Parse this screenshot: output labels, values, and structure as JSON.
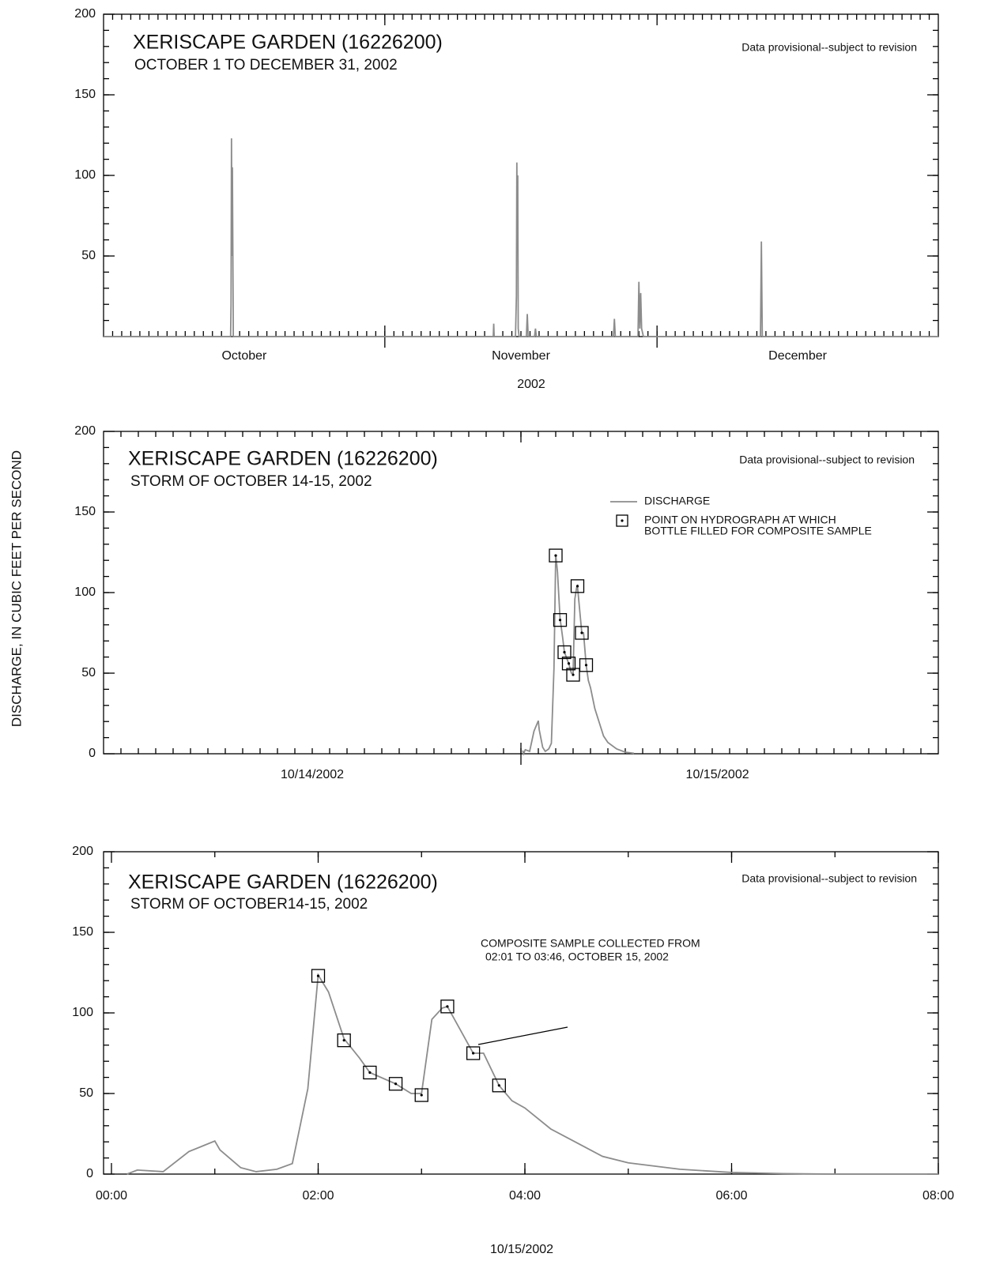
{
  "ylabel": "DISCHARGE, IN CUBIC FEET PER SECOND",
  "chart_data": [
    {
      "type": "line",
      "title": "XERISCAPE GARDEN (16226200)",
      "subtitle": "OCTOBER 1 TO DECEMBER 31, 2002",
      "note": "Data provisional--subject to revision",
      "xlabel": "2002",
      "xlim": [
        0,
        92
      ],
      "ylim": [
        0,
        200
      ],
      "yticks": [
        50,
        100,
        150,
        200
      ],
      "xticks": [
        {
          "value": 15.5,
          "label": "October"
        },
        {
          "value": 46,
          "label": "November"
        },
        {
          "value": 76.5,
          "label": "December"
        }
      ],
      "xmajor": [
        31,
        61
      ],
      "series": [
        {
          "color": "#8c8c8c",
          "x": [
            0,
            14.0,
            14.05,
            14.1,
            14.15,
            14.2,
            14.3,
            42.95,
            43.0,
            43.05,
            45.4,
            45.5,
            45.55,
            45.6,
            45.65,
            45.7,
            45.8,
            46.6,
            46.7,
            46.8,
            47.5,
            47.6,
            47.7,
            56.2,
            56.3,
            56.4,
            58.9,
            59.0,
            59.1,
            59.2,
            59.3,
            59.5,
            72.4,
            72.5,
            72.6,
            92
          ],
          "values": [
            0,
            0,
            20,
            123,
            50,
            105,
            0,
            0,
            8,
            0,
            0,
            25,
            108,
            60,
            100,
            5,
            0,
            0,
            14,
            0,
            0,
            5,
            0,
            0,
            11,
            0,
            0,
            34,
            5,
            27,
            5,
            0,
            0,
            59,
            0,
            0
          ]
        }
      ]
    },
    {
      "type": "line",
      "title": "XERISCAPE GARDEN (16226200)",
      "subtitle": "STORM OF OCTOBER 14-15, 2002",
      "note": "Data provisional--subject to revision",
      "xlim": [
        0,
        48
      ],
      "ylim": [
        0,
        200
      ],
      "yticks": [
        0,
        50,
        100,
        150,
        200
      ],
      "xticks": [
        {
          "value": 12,
          "label": "10/14/2002"
        },
        {
          "value": 35.3,
          "label": "10/15/2002"
        }
      ],
      "xmajor": [
        24
      ],
      "series": [
        {
          "name": "DISCHARGE",
          "color": "#8c8c8c",
          "x": [
            24.1,
            24.15,
            24.25,
            24.5,
            24.75,
            25,
            25.05,
            25.25,
            25.4,
            25.6,
            25.75,
            25.9,
            26,
            26.1,
            26.25,
            26.4,
            26.5,
            26.75,
            26.9,
            27,
            27.1,
            27.2,
            27.25,
            27.5,
            27.6,
            27.75,
            27.875,
            28,
            28.25,
            28.5,
            28.75,
            29,
            29.5,
            30,
            30.5
          ],
          "values": [
            2,
            0,
            2.5,
            1.5,
            14,
            20.5,
            15,
            4,
            1.5,
            3,
            6.5,
            53,
            123.5,
            113,
            84,
            72,
            63,
            56,
            50,
            50,
            96,
            103,
            104,
            75,
            75,
            55,
            45.5,
            41,
            28,
            19.5,
            11,
            7,
            3,
            1,
            0.3
          ]
        },
        {
          "name": [
            "POINT ON HYDROGRAPH AT WHICH",
            "BOTTLE FILLED FOR COMPOSITE SAMPLE"
          ],
          "marker": "square",
          "color": "#000000",
          "x": [
            26,
            26.25,
            26.5,
            26.75,
            27,
            27.25,
            27.5,
            27.75
          ],
          "values": [
            123,
            83,
            63,
            56,
            49,
            104,
            75,
            55
          ]
        }
      ]
    },
    {
      "type": "line",
      "title": "XERISCAPE GARDEN (16226200)",
      "subtitle": "STORM OF OCTOBER14-15, 2002",
      "note": "Data provisional--subject to revision",
      "xlabel": "10/15/2002",
      "annotation": [
        "COMPOSITE SAMPLE COLLECTED FROM",
        "02:01 TO 03:46,  OCTOBER 15, 2002"
      ],
      "xlim": [
        0,
        8
      ],
      "ylim": [
        0,
        200
      ],
      "yticks": [
        0,
        50,
        100,
        150,
        200
      ],
      "xticks": [
        {
          "value": 0,
          "label": "00:00"
        },
        {
          "value": 2,
          "label": "02:00"
        },
        {
          "value": 4,
          "label": "04:00"
        },
        {
          "value": 6,
          "label": "06:00"
        },
        {
          "value": 8,
          "label": "08:00"
        }
      ],
      "series": [
        {
          "color": "#8c8c8c",
          "x": [
            0.15,
            0.25,
            0.5,
            0.75,
            1.0,
            1.05,
            1.25,
            1.4,
            1.6,
            1.75,
            1.9,
            2.0,
            2.1,
            2.25,
            2.4,
            2.5,
            2.75,
            2.9,
            3.0,
            3.1,
            3.2,
            3.25,
            3.5,
            3.6,
            3.75,
            3.875,
            4.0,
            4.25,
            4.5,
            4.75,
            5.0,
            5.5,
            6.0,
            6.5,
            7.0,
            8.0
          ],
          "values": [
            0,
            2.5,
            1.5,
            14,
            20.5,
            15,
            4,
            1.5,
            3,
            6.5,
            53,
            123.5,
            113,
            84,
            72,
            63,
            56,
            50,
            50,
            96,
            103,
            104,
            75,
            75,
            55,
            45.5,
            41,
            28,
            19.5,
            11,
            7,
            3,
            1,
            0.3,
            0,
            0
          ]
        },
        {
          "marker": "square",
          "color": "#000000",
          "x": [
            2,
            2.25,
            2.5,
            2.75,
            3,
            3.25,
            3.5,
            3.75
          ],
          "values": [
            123,
            83,
            63,
            56,
            49,
            104,
            75,
            55
          ]
        }
      ]
    }
  ]
}
